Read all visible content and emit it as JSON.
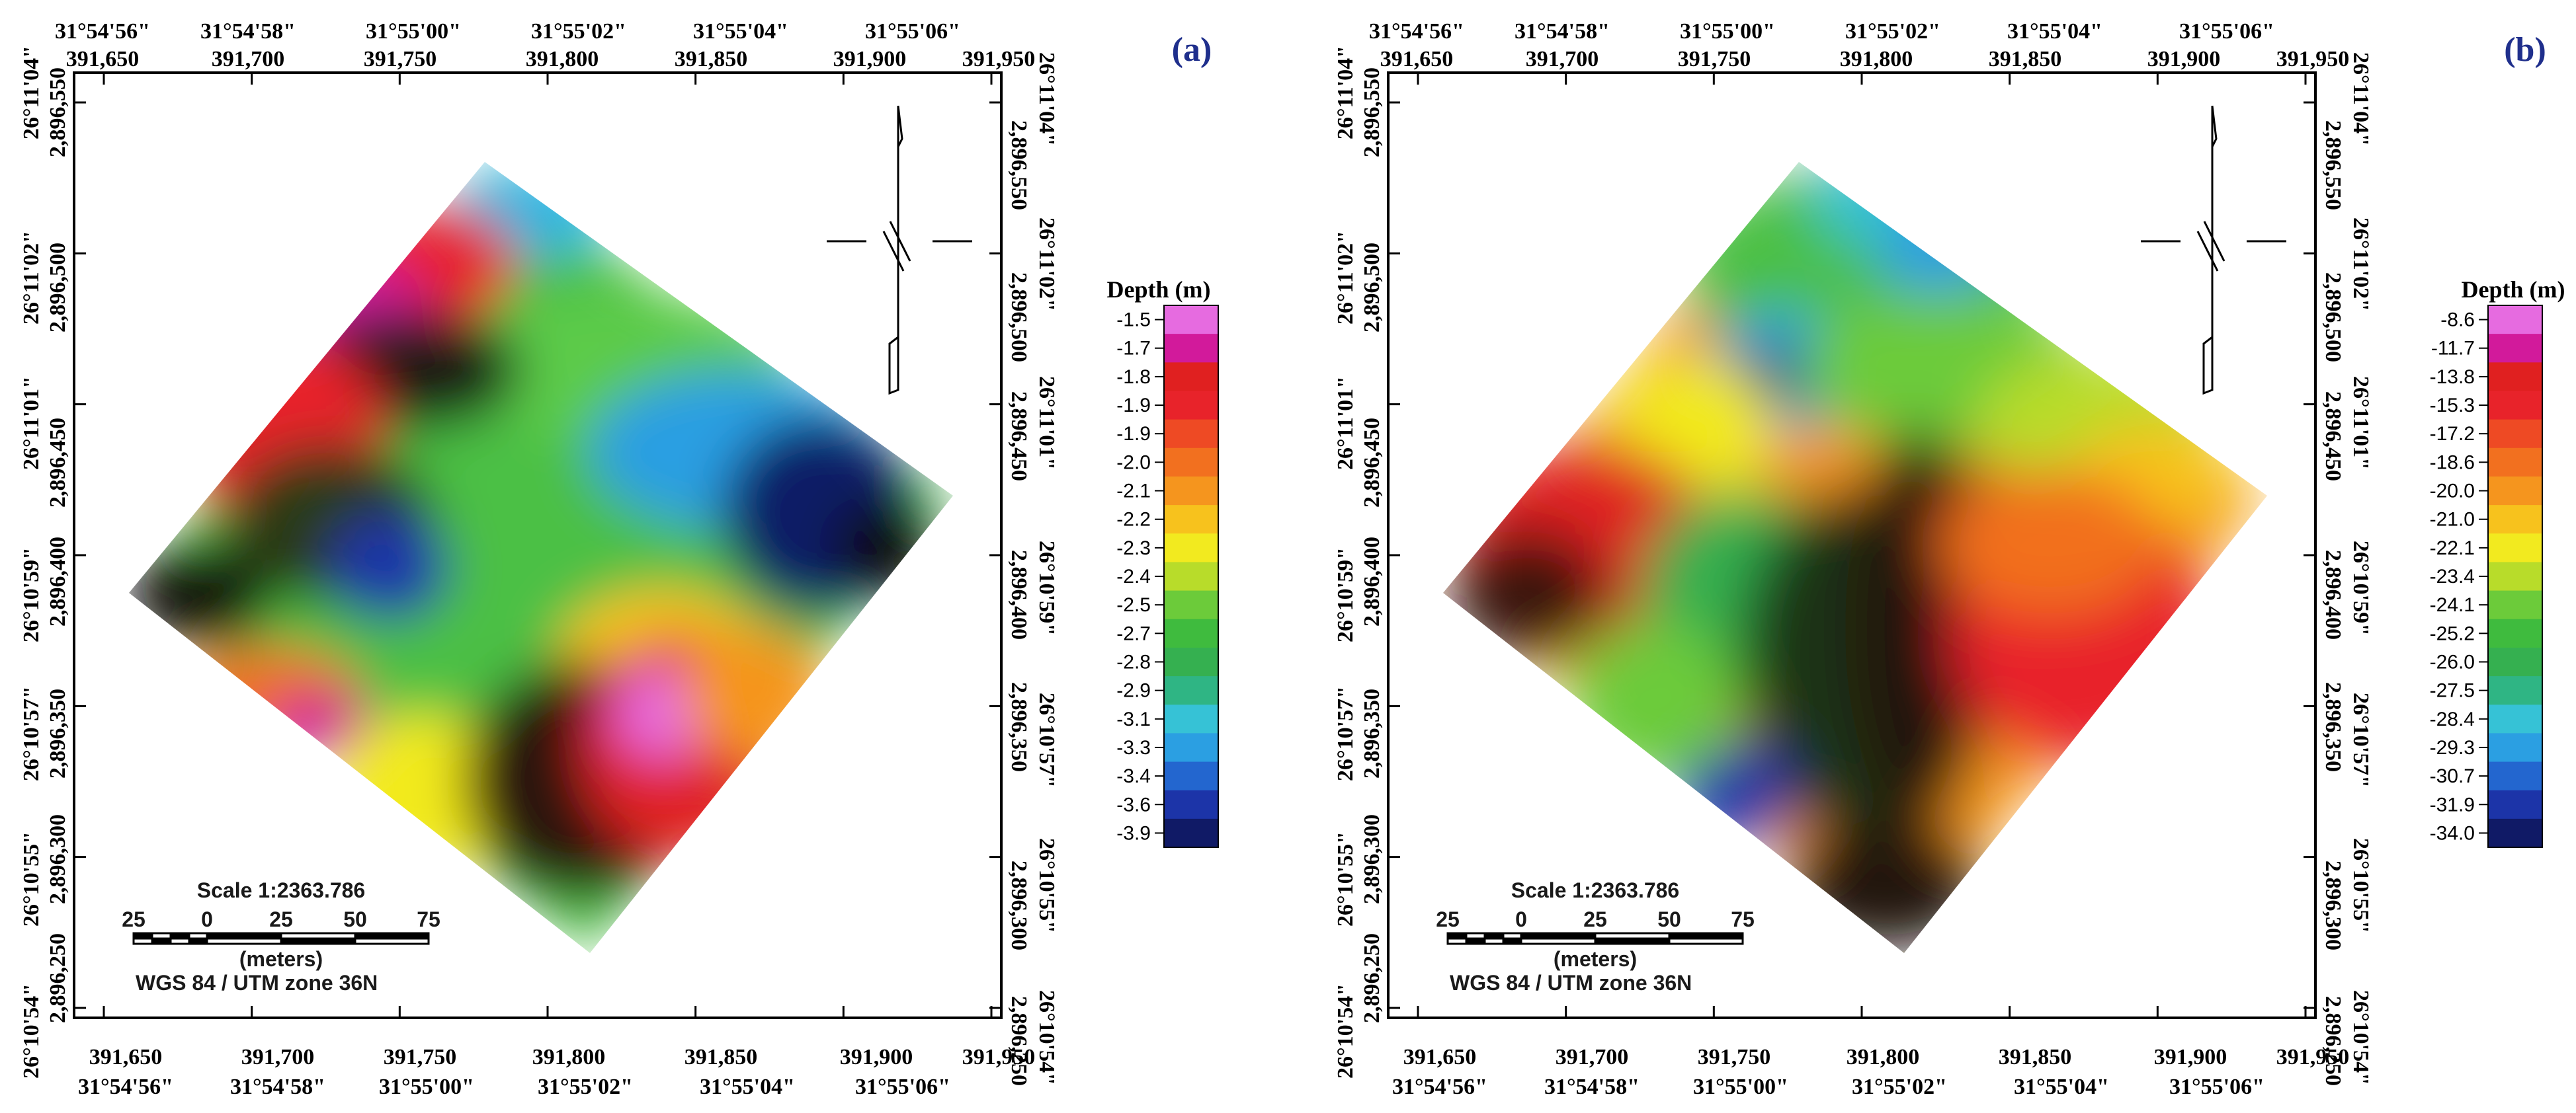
{
  "panels": [
    {
      "label": "(a)",
      "easting_ticks": [
        "391,650",
        "391,700",
        "391,750",
        "391,800",
        "391,850",
        "391,900",
        "391,950"
      ],
      "lon_ticks": [
        "31°54'56\"",
        "31°54'58\"",
        "31°55'00\"",
        "31°55'02\"",
        "31°55'04\"",
        "31°55'06\""
      ],
      "northing_ticks": [
        "2,896,550",
        "2,896,500",
        "2,896,450",
        "2,896,400",
        "2,896,350",
        "2,896,300",
        "2,896,250"
      ],
      "lat_ticks": [
        "26°11'04\"",
        "26°11'02\"",
        "26°11'01\"",
        "26°10'59\"",
        "26°10'57\"",
        "26°10'55\"",
        "26°10'54\""
      ],
      "legend_title": "Depth (m)",
      "legend_values": [
        "-1.5",
        "-1.7",
        "-1.8",
        "-1.9",
        "-1.9",
        "-2.0",
        "-2.1",
        "-2.2",
        "-2.3",
        "-2.4",
        "-2.5",
        "-2.7",
        "-2.8",
        "-2.9",
        "-3.1",
        "-3.3",
        "-3.4",
        "-3.6",
        "-3.9"
      ],
      "scale_text": "Scale 1:2363.786",
      "scale_ticks": [
        "25",
        "0",
        "25",
        "50",
        "75"
      ],
      "scale_unit": "(meters)",
      "projection": "WGS 84 / UTM zone 36N"
    },
    {
      "label": "(b)",
      "easting_ticks": [
        "391,650",
        "391,700",
        "391,750",
        "391,800",
        "391,850",
        "391,900",
        "391,950"
      ],
      "lon_ticks": [
        "31°54'56\"",
        "31°54'58\"",
        "31°55'00\"",
        "31°55'02\"",
        "31°55'04\"",
        "31°55'06\""
      ],
      "northing_ticks": [
        "2,896,550",
        "2,896,500",
        "2,896,450",
        "2,896,400",
        "2,896,350",
        "2,896,300",
        "2,896,250"
      ],
      "lat_ticks": [
        "26°11'04\"",
        "26°11'02\"",
        "26°11'01\"",
        "26°10'59\"",
        "26°10'57\"",
        "26°10'55\"",
        "26°10'54\""
      ],
      "legend_title": "Depth (m)",
      "legend_values": [
        "-8.6",
        "-11.7",
        "-13.8",
        "-15.3",
        "-17.2",
        "-18.6",
        "-20.0",
        "-21.0",
        "-22.1",
        "-23.4",
        "-24.1",
        "-25.2",
        "-26.0",
        "-27.5",
        "-28.4",
        "-29.3",
        "-30.7",
        "-31.9",
        "-34.0"
      ],
      "scale_text": "Scale 1:2363.786",
      "scale_ticks": [
        "25",
        "0",
        "25",
        "50",
        "75"
      ],
      "scale_unit": "(meters)",
      "projection": "WGS 84 / UTM zone 36N"
    }
  ],
  "colormap": [
    "#e66be0",
    "#d21a9b",
    "#e02020",
    "#e8232a",
    "#ee4a24",
    "#f2701f",
    "#f5951e",
    "#f7c21d",
    "#f2ea1f",
    "#b8dc2a",
    "#6ccb3a",
    "#3fbb3e",
    "#35b050",
    "#2fb584",
    "#36c2d6",
    "#2b9fe2",
    "#2366cf",
    "#1c34a8",
    "#101a66"
  ],
  "colors": {
    "panel_label": "#1f2f8c"
  }
}
